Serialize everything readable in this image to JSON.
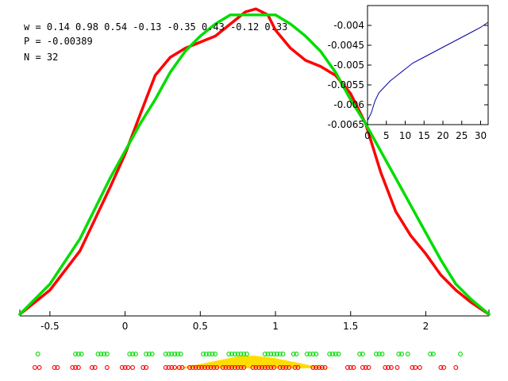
{
  "info": {
    "w_line": "w = 0.14 0.98 0.54 -0.13 -0.35 0.43 -0.12 0.33",
    "p_line": "P = -0.00389",
    "n_line": "N = 32"
  },
  "colors": {
    "red_curve": "#ff0000",
    "green_curve": "#00dd00",
    "inset_line": "#0000a0",
    "density": "#ffdd00",
    "axis": "#000000"
  },
  "chart_data": [
    {
      "type": "line",
      "title": "",
      "xlabel": "",
      "ylabel": "",
      "xlim": [
        -0.7,
        2.42
      ],
      "xticks": [
        -0.5,
        0,
        0.5,
        1,
        1.5,
        2
      ],
      "xtick_labels": [
        "-0.5",
        "0",
        "0.5",
        "1",
        "1.5",
        "2"
      ],
      "ylim": [
        0,
        1
      ],
      "grid": false,
      "series": [
        {
          "color": "red",
          "x": [
            -0.7,
            -0.5,
            -0.3,
            -0.1,
            0.0,
            0.1,
            0.2,
            0.3,
            0.4,
            0.5,
            0.55,
            0.6,
            0.7,
            0.8,
            0.87,
            0.95,
            1.0,
            1.1,
            1.2,
            1.3,
            1.4,
            1.5,
            1.6,
            1.7,
            1.8,
            1.9,
            2.0,
            2.1,
            2.2,
            2.3,
            2.42
          ],
          "y": [
            0.0,
            0.08,
            0.21,
            0.42,
            0.53,
            0.66,
            0.79,
            0.85,
            0.88,
            0.9,
            0.91,
            0.92,
            0.96,
            1.0,
            1.01,
            0.99,
            0.94,
            0.88,
            0.84,
            0.82,
            0.79,
            0.73,
            0.63,
            0.47,
            0.34,
            0.26,
            0.2,
            0.13,
            0.08,
            0.04,
            0.0
          ]
        },
        {
          "color": "green",
          "x": [
            -0.7,
            -0.5,
            -0.3,
            -0.1,
            0.0,
            0.1,
            0.2,
            0.3,
            0.4,
            0.5,
            0.6,
            0.7,
            0.8,
            0.9,
            1.0,
            1.1,
            1.2,
            1.3,
            1.4,
            1.5,
            1.6,
            1.7,
            1.8,
            1.9,
            2.0,
            2.1,
            2.2,
            2.3,
            2.42
          ],
          "y": [
            0.0,
            0.1,
            0.25,
            0.45,
            0.54,
            0.63,
            0.71,
            0.8,
            0.87,
            0.92,
            0.96,
            0.99,
            0.99,
            0.99,
            0.99,
            0.96,
            0.92,
            0.87,
            0.8,
            0.71,
            0.63,
            0.54,
            0.45,
            0.36,
            0.27,
            0.18,
            0.1,
            0.05,
            0.0
          ]
        }
      ]
    },
    {
      "type": "line",
      "title": "",
      "xlabel": "",
      "ylabel": "",
      "xlim": [
        0,
        32
      ],
      "ylim": [
        -0.0065,
        -0.0038
      ],
      "xticks": [
        0,
        5,
        10,
        15,
        20,
        25,
        30
      ],
      "xtick_labels": [
        "0",
        "5",
        "10",
        "15",
        "20",
        "25",
        "30"
      ],
      "yticks": [
        -0.004,
        -0.0045,
        -0.005,
        -0.0055,
        -0.006,
        -0.0065
      ],
      "ytick_labels": [
        "-0.004",
        "-0.0045",
        "-0.005",
        "-0.0055",
        "-0.006",
        "-0.0065"
      ],
      "series": [
        {
          "color": "blue",
          "x": [
            0,
            1,
            2,
            3,
            4,
            5,
            6,
            8,
            10,
            12,
            15,
            18,
            20,
            22,
            25,
            28,
            30,
            32
          ],
          "y": [
            -0.0064,
            -0.0062,
            -0.0059,
            -0.0057,
            -0.0056,
            -0.0055,
            -0.0054,
            -0.00525,
            -0.0051,
            -0.00495,
            -0.0048,
            -0.00465,
            -0.00455,
            -0.00445,
            -0.0043,
            -0.00415,
            -0.00405,
            -0.00392
          ]
        }
      ]
    },
    {
      "type": "scatter",
      "title": "",
      "xlim": [
        -0.7,
        2.42
      ],
      "series": [
        {
          "color": "green",
          "x": [
            -0.58,
            -0.33,
            -0.31,
            -0.29,
            -0.18,
            -0.16,
            -0.14,
            -0.12,
            0.03,
            0.05,
            0.07,
            0.14,
            0.16,
            0.18,
            0.27,
            0.29,
            0.31,
            0.33,
            0.35,
            0.37,
            0.52,
            0.54,
            0.56,
            0.58,
            0.6,
            0.69,
            0.71,
            0.73,
            0.75,
            0.77,
            0.79,
            0.81,
            0.93,
            0.95,
            0.97,
            0.99,
            1.01,
            1.03,
            1.05,
            1.12,
            1.14,
            1.21,
            1.23,
            1.25,
            1.27,
            1.36,
            1.38,
            1.4,
            1.42,
            1.56,
            1.58,
            1.67,
            1.69,
            1.71,
            1.82,
            1.84,
            1.88,
            2.03,
            2.05,
            2.23
          ]
        },
        {
          "color": "red",
          "x": [
            -0.6,
            -0.57,
            -0.47,
            -0.45,
            -0.35,
            -0.33,
            -0.31,
            -0.22,
            -0.2,
            -0.12,
            -0.02,
            0.0,
            0.02,
            0.05,
            0.12,
            0.14,
            0.27,
            0.29,
            0.31,
            0.33,
            0.36,
            0.38,
            0.43,
            0.45,
            0.47,
            0.49,
            0.51,
            0.53,
            0.55,
            0.57,
            0.59,
            0.61,
            0.65,
            0.67,
            0.69,
            0.71,
            0.73,
            0.75,
            0.77,
            0.79,
            0.85,
            0.87,
            0.89,
            0.91,
            0.93,
            0.95,
            0.97,
            0.99,
            1.03,
            1.05,
            1.07,
            1.09,
            1.13,
            1.15,
            1.25,
            1.27,
            1.29,
            1.31,
            1.33,
            1.48,
            1.5,
            1.52,
            1.58,
            1.6,
            1.62,
            1.73,
            1.75,
            1.77,
            1.81,
            1.91,
            1.93,
            1.96,
            2.1,
            2.12,
            2.2
          ]
        }
      ]
    }
  ]
}
